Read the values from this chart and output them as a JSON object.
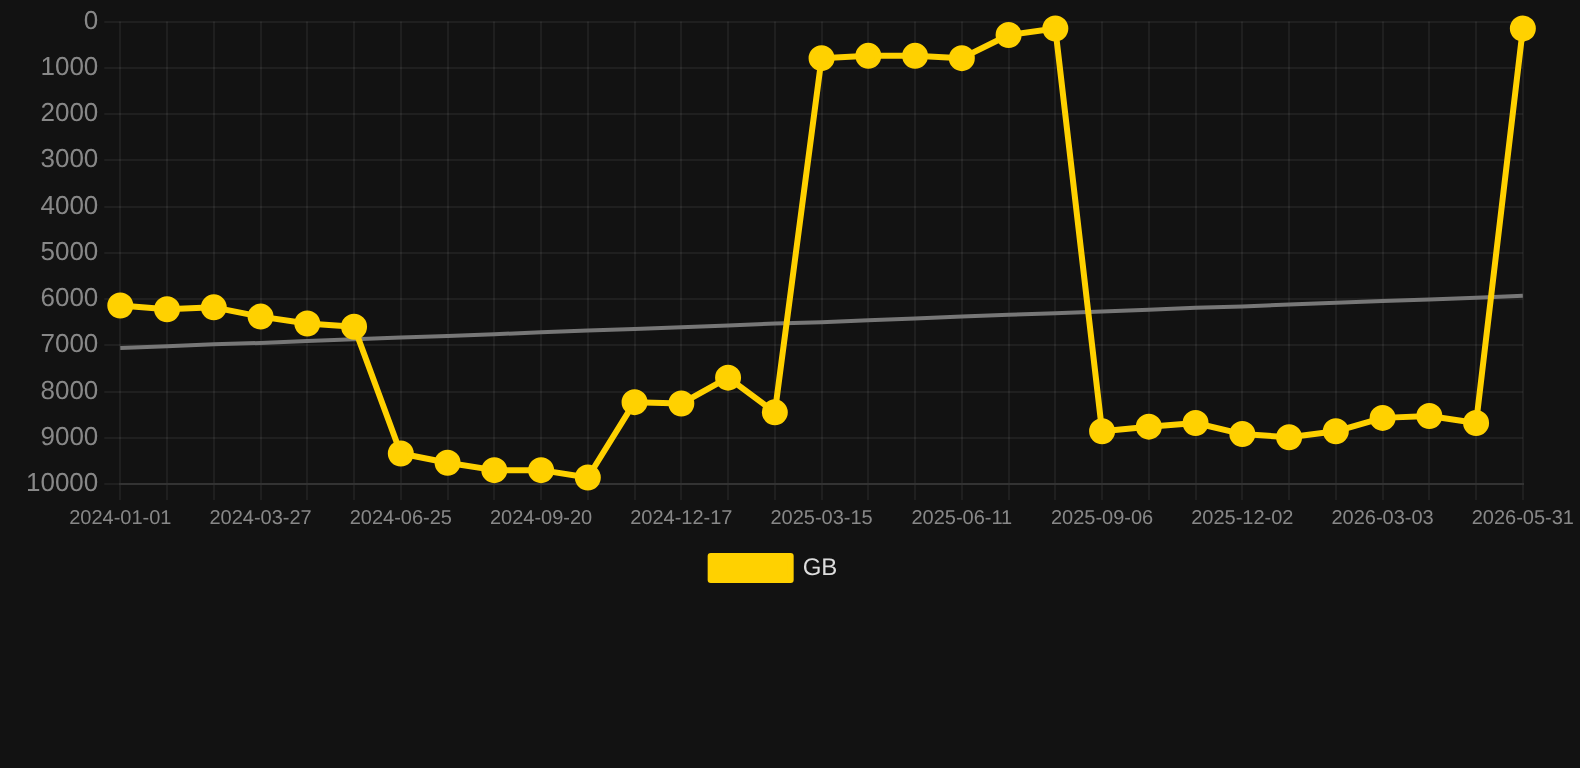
{
  "chart_data": {
    "type": "line",
    "categories": [
      "2024-01-01",
      null,
      null,
      "2024-03-27",
      null,
      null,
      "2024-06-25",
      null,
      null,
      "2024-09-20",
      null,
      null,
      "2024-12-17",
      null,
      null,
      "2025-03-15",
      null,
      null,
      "2025-06-11",
      null,
      null,
      "2025-09-06",
      null,
      null,
      "2025-12-02",
      null,
      null,
      "2026-03-03",
      null,
      null,
      "2026-05-31"
    ],
    "series": [
      {
        "name": "GB",
        "color": "#ffd100",
        "values": [
          6140,
          6220,
          6180,
          6380,
          6530,
          6600,
          9340,
          9540,
          9700,
          9700,
          9860,
          8230,
          8260,
          7700,
          8450,
          790,
          740,
          740,
          790,
          290,
          150,
          8860,
          8760,
          8680,
          8920,
          8990,
          8860,
          8570,
          8530,
          8680,
          150
        ]
      },
      {
        "type": "line",
        "color": "#777777",
        "marker": "none",
        "values": [
          7060,
          7020,
          6980,
          6950,
          6910,
          6870,
          6830,
          6800,
          6760,
          6720,
          6680,
          6650,
          6610,
          6570,
          6530,
          6500,
          6460,
          6420,
          6380,
          6340,
          6310,
          6270,
          6230,
          6190,
          6160,
          6120,
          6080,
          6040,
          6010,
          5970,
          5930
        ]
      }
    ],
    "ylim": [
      10000,
      0
    ],
    "yticks": [
      0,
      1000,
      2000,
      3000,
      4000,
      5000,
      6000,
      7000,
      8000,
      9000,
      10000
    ],
    "grid": true,
    "legend": "bottom",
    "marker": "circle",
    "line_style": "solid"
  }
}
